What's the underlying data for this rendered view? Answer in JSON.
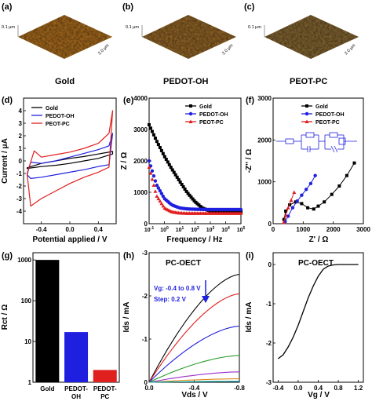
{
  "panels": {
    "a": {
      "label": "(a)"
    },
    "b": {
      "label": "(b)"
    },
    "c": {
      "label": "(c)"
    },
    "d": {
      "label": "(d)"
    },
    "e": {
      "label": "(e)"
    },
    "f": {
      "label": "(f)"
    },
    "g": {
      "label": "(g)"
    },
    "h": {
      "label": "(h)"
    },
    "i": {
      "label": "(i)"
    }
  },
  "afm": {
    "z_label": "0.1 μm",
    "xy_label": "2.0 μm",
    "captions": [
      "Gold",
      "PEDOT-OH",
      "PEOT-PC"
    ],
    "colors": [
      "#b0701e",
      "#9a6a28",
      "#8a6a33"
    ]
  },
  "chart_data": [
    {
      "panel": "d",
      "type": "line",
      "xlabel": "Potential applied / V",
      "ylabel": "Current / μA",
      "xlim": [
        -0.65,
        0.65
      ],
      "ylim": [
        -5,
        5
      ],
      "xticks": [
        "-0.4",
        "0.0",
        "0.4"
      ],
      "yticks": [
        "-4",
        "-3",
        "-2",
        "-1",
        "0",
        "1",
        "2",
        "3",
        "4"
      ],
      "legend": [
        "Gold",
        "PEDOT-OH",
        "PEOT-PC"
      ],
      "colors": [
        "#000000",
        "#1f1fe0",
        "#e01f1f"
      ],
      "series": [
        {
          "name": "Gold",
          "x": [
            -0.6,
            -0.4,
            -0.2,
            0,
            0.2,
            0.4,
            0.6,
            0.6,
            0.4,
            0.2,
            0,
            -0.2,
            -0.4,
            -0.6
          ],
          "y": [
            -0.6,
            -0.45,
            -0.35,
            -0.2,
            0.0,
            0.2,
            0.55,
            0.75,
            0.55,
            0.35,
            0.2,
            0.0,
            -0.2,
            -0.55
          ]
        },
        {
          "name": "PEDOT-OH",
          "x": [
            -0.6,
            -0.55,
            -0.4,
            -0.2,
            0,
            0.2,
            0.4,
            0.55,
            0.6,
            0.55,
            0.4,
            0.2,
            0,
            -0.2,
            -0.4,
            -0.55,
            -0.6
          ],
          "y": [
            -1.1,
            -1.4,
            -1.3,
            -1.1,
            -0.9,
            -0.7,
            -0.45,
            -0.3,
            2.2,
            1.2,
            0.9,
            0.6,
            0.3,
            0.0,
            -0.2,
            -0.1,
            -1.1
          ]
        },
        {
          "name": "PEOT-PC",
          "x": [
            -0.6,
            -0.55,
            -0.4,
            -0.2,
            0,
            0.2,
            0.4,
            0.55,
            0.6,
            0.55,
            0.4,
            0.2,
            0,
            -0.2,
            -0.4,
            -0.5,
            -0.6
          ],
          "y": [
            -1.0,
            -3.6,
            -3.0,
            -2.4,
            -1.8,
            -1.3,
            -0.9,
            -0.5,
            4.0,
            2.2,
            1.4,
            1.0,
            0.7,
            0.5,
            0.3,
            0.8,
            -1.0
          ]
        }
      ]
    },
    {
      "panel": "e",
      "type": "scatter",
      "xscale": "log",
      "xlabel": "Frequency / Hz",
      "ylabel": "Z / Ω",
      "xlim": [
        0.1,
        100000
      ],
      "ylim": [
        0,
        4000
      ],
      "yticks": [
        "0",
        "1000",
        "2000",
        "3000",
        "4000"
      ],
      "legend": [
        "Gold",
        "PEDOT-OH",
        "PEOT-PC"
      ],
      "colors": [
        "#000000",
        "#1f1fe0",
        "#e01f1f"
      ],
      "series": [
        {
          "name": "Gold",
          "x": [
            0.1,
            0.3,
            1,
            3,
            10,
            30,
            100,
            300,
            1000,
            3000,
            10000,
            30000,
            100000
          ],
          "y": [
            3150,
            2650,
            2150,
            1750,
            1350,
            1000,
            700,
            500,
            400,
            380,
            370,
            370,
            370
          ]
        },
        {
          "name": "PEDOT-OH",
          "x": [
            0.1,
            0.3,
            1,
            3,
            10,
            30,
            100,
            300,
            1000,
            3000,
            10000,
            30000,
            100000
          ],
          "y": [
            2000,
            1250,
            800,
            600,
            500,
            470,
            460,
            455,
            450,
            450,
            450,
            450,
            450
          ]
        },
        {
          "name": "PEOT-PC",
          "x": [
            0.1,
            0.3,
            1,
            3,
            10,
            30,
            100,
            300,
            1000,
            3000,
            10000,
            30000,
            100000
          ],
          "y": [
            1800,
            900,
            500,
            380,
            340,
            330,
            330,
            330,
            330,
            330,
            330,
            330,
            330
          ]
        }
      ]
    },
    {
      "panel": "f",
      "type": "scatter",
      "xlabel": "Z' / Ω",
      "ylabel": "-Z'' / Ω",
      "xlim": [
        0,
        3000
      ],
      "ylim": [
        0,
        3000
      ],
      "xticks": [
        "0",
        "1000",
        "2000",
        "3000"
      ],
      "yticks": [
        "0",
        "1000",
        "2000",
        "3000"
      ],
      "legend": [
        "Gold",
        "PEDOT-OH",
        "PEOT-PC"
      ],
      "colors": [
        "#000000",
        "#1f1fe0",
        "#e01f1f"
      ],
      "series": [
        {
          "name": "Gold",
          "x": [
            360,
            420,
            550,
            750,
            950,
            1150,
            1350,
            1500,
            1700,
            1950,
            2200,
            2450,
            2700
          ],
          "y": [
            100,
            300,
            450,
            520,
            480,
            380,
            350,
            420,
            520,
            700,
            900,
            1150,
            1450
          ]
        },
        {
          "name": "PEDOT-OH",
          "x": [
            400,
            500,
            650,
            800,
            950,
            1100,
            1250,
            1400
          ],
          "y": [
            50,
            180,
            380,
            540,
            680,
            820,
            960,
            1150
          ]
        },
        {
          "name": "PEOT-PC",
          "x": [
            350,
            420,
            500,
            600,
            700
          ],
          "y": [
            30,
            200,
            380,
            560,
            750
          ]
        }
      ]
    },
    {
      "panel": "g",
      "type": "bar",
      "yscale": "log",
      "ylabel": "Rct / Ω",
      "ylim": [
        1,
        1500
      ],
      "yticks": [
        "1",
        "10",
        "100",
        "1000"
      ],
      "categories": [
        "Gold",
        "PEDOT-OH",
        "PEDOT-PC"
      ],
      "values": [
        1000,
        17,
        2
      ],
      "colors": [
        "#000000",
        "#1f1fe0",
        "#e01f1f"
      ]
    },
    {
      "panel": "h",
      "type": "line",
      "title": "PC-OECT",
      "xlabel": "Vds / V",
      "ylabel": "Ids / mA",
      "xlim": [
        0,
        -0.8
      ],
      "ylim": [
        0,
        -3
      ],
      "xticks": [
        "0.0",
        "-0.4",
        "-0.8"
      ],
      "yticks": [
        "0",
        "-1",
        "-2",
        "-3"
      ],
      "annotation_1": "Vg: -0.4 to 0.8 V",
      "annotation_2": "Step: 0.2 V",
      "colors": [
        "#000000",
        "#e01f1f",
        "#1f1fe0",
        "#2a9d2a",
        "#9b30c8",
        "#e08a1f",
        "#00a0a0"
      ],
      "series": [
        {
          "x": [
            0,
            -0.8
          ],
          "y_end": 2.5
        },
        {
          "x": [
            0,
            -0.8
          ],
          "y_end": 2.05
        },
        {
          "x": [
            0,
            -0.8
          ],
          "y_end": 1.3
        },
        {
          "x": [
            0,
            -0.8
          ],
          "y_end": 0.62
        },
        {
          "x": [
            0,
            -0.8
          ],
          "y_end": 0.24
        },
        {
          "x": [
            0,
            -0.8
          ],
          "y_end": 0.08
        },
        {
          "x": [
            0,
            -0.8
          ],
          "y_end": 0.02
        }
      ]
    },
    {
      "panel": "i",
      "type": "line",
      "title": "PC-OECT",
      "xlabel": "Vg / V",
      "ylabel": "Ids / mA",
      "xlim": [
        -0.5,
        1.3
      ],
      "ylim": [
        -3,
        0.3
      ],
      "xticks": [
        "-0.4",
        "0.0",
        "0.4",
        "0.8",
        "1.2"
      ],
      "yticks": [
        "-3",
        "-2",
        "-1",
        "0"
      ],
      "series": [
        {
          "x": [
            -0.4,
            -0.3,
            -0.2,
            -0.1,
            0,
            0.1,
            0.2,
            0.3,
            0.4,
            0.5,
            0.6,
            0.7,
            0.8,
            1.0,
            1.2
          ],
          "y": [
            -2.4,
            -2.3,
            -2.1,
            -1.85,
            -1.55,
            -1.2,
            -0.85,
            -0.55,
            -0.3,
            -0.12,
            -0.04,
            -0.01,
            0,
            0,
            0
          ]
        }
      ]
    }
  ]
}
